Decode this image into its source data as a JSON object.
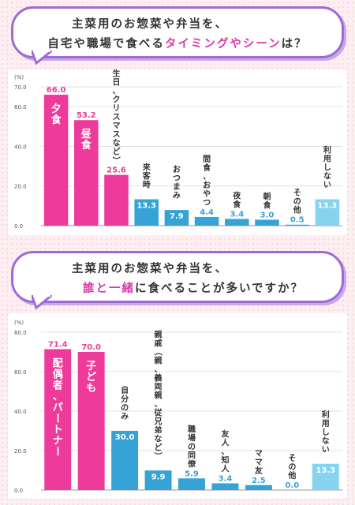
{
  "question1": {
    "line1": "主菜用のお惣菜や弁当を、",
    "line2_prefix": "自宅や職場で食べる",
    "line2_highlight": "タイミングやシーン",
    "line2_suffix": "は？"
  },
  "question2": {
    "line1": "主菜用のお惣菜や弁当を、",
    "line2_highlight1": "誰と一緒",
    "line2_mid": "に",
    "line2_suffix": "食べることが多いですか？"
  },
  "colors": {
    "pink": "#ee3a9a",
    "blue": "#36a3d6",
    "lightblue": "#86d3f0",
    "accent": "#a06ad6"
  },
  "chart_data": [
    {
      "type": "bar",
      "unit": "(%)",
      "ylim": [
        0,
        70
      ],
      "yticks": [
        "0.0",
        "20.0",
        "40.0",
        "60.0",
        "70.0"
      ],
      "ytick_values": [
        0,
        20,
        40,
        60,
        70
      ],
      "categories": [
        "夕食",
        "昼食",
        "イベント時（誕生日、クリスマスなど）",
        "来客時",
        "おつまみ",
        "間食、おやつ",
        "夜食",
        "朝食",
        "その他",
        "利用しない"
      ],
      "values": [
        66.0,
        53.2,
        25.6,
        13.3,
        7.9,
        4.4,
        3.4,
        3.0,
        0.5,
        13.3
      ],
      "value_labels": [
        "66.0",
        "53.2",
        "25.6",
        "13.3",
        "7.9",
        "4.4",
        "3.4",
        "3.0",
        "0.5",
        "13.3"
      ],
      "bar_colors": [
        "pink",
        "pink",
        "pink",
        "blue",
        "blue",
        "blue",
        "blue",
        "blue",
        "blue",
        "lightblue"
      ]
    },
    {
      "type": "bar",
      "unit": "(%)",
      "ylim": [
        0,
        80
      ],
      "yticks": [
        "0.0",
        "20.0",
        "40.0",
        "60.0",
        "80.0"
      ],
      "ytick_values": [
        0,
        20,
        40,
        60,
        80
      ],
      "categories": [
        "配偶者、パートナー",
        "子ども",
        "自分のみ",
        "親戚（親、義両親、従兄弟など）",
        "職場の同僚",
        "友人、知人",
        "ママ友",
        "その他",
        "利用しない"
      ],
      "values": [
        71.4,
        70.0,
        30.0,
        9.9,
        5.9,
        3.4,
        2.5,
        0.0,
        13.3
      ],
      "value_labels": [
        "71.4",
        "70.0",
        "30.0",
        "9.9",
        "5.9",
        "3.4",
        "2.5",
        "0.0",
        "13.3"
      ],
      "bar_colors": [
        "pink",
        "pink",
        "blue",
        "blue",
        "blue",
        "blue",
        "blue",
        "blue",
        "lightblue"
      ]
    }
  ]
}
